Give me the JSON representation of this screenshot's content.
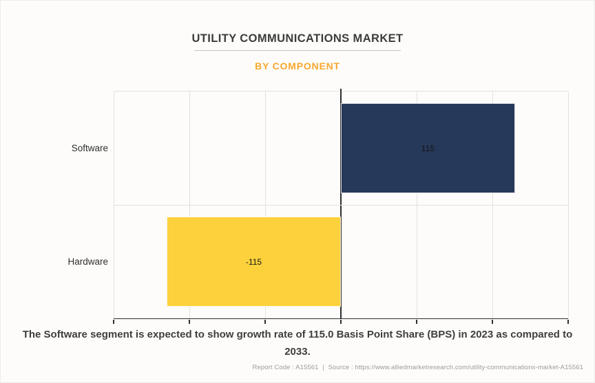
{
  "page": {
    "title": "UTILITY COMMUNICATIONS MARKET",
    "subtitle": "BY COMPONENT",
    "caption": "The Software segment is expected to show growth rate of 115.0 Basis Point Share (BPS) in 2023 as compared to 2033.",
    "footer": {
      "report_code": "Report Code : A15561",
      "separator": "|",
      "source": "Source : https://www.alliedmarketresearch.com/utility-communications-market-A15561"
    }
  },
  "colors": {
    "background": "#FDFCFA",
    "subtitle_accent": "#F8A72E",
    "axis": "#2E2E2E",
    "gridline": "#E4E2DE",
    "software_bar": "#27395A",
    "hardware_bar": "#FDD13C"
  },
  "chart_data": {
    "type": "bar",
    "orientation": "horizontal",
    "title": "UTILITY COMMUNICATIONS MARKET",
    "subtitle": "BY COMPONENT",
    "categories": [
      "Software",
      "Hardware"
    ],
    "values": [
      115,
      -115
    ],
    "bar_labels": [
      "115",
      "-115"
    ],
    "bar_colors": [
      "#27395A",
      "#FDD13C"
    ],
    "xlim": [
      -150,
      150
    ],
    "gridline_step": 50,
    "x_tick_labels_visible": false,
    "grid": true,
    "legend": "none",
    "unit": "Basis Point Share (BPS)"
  }
}
